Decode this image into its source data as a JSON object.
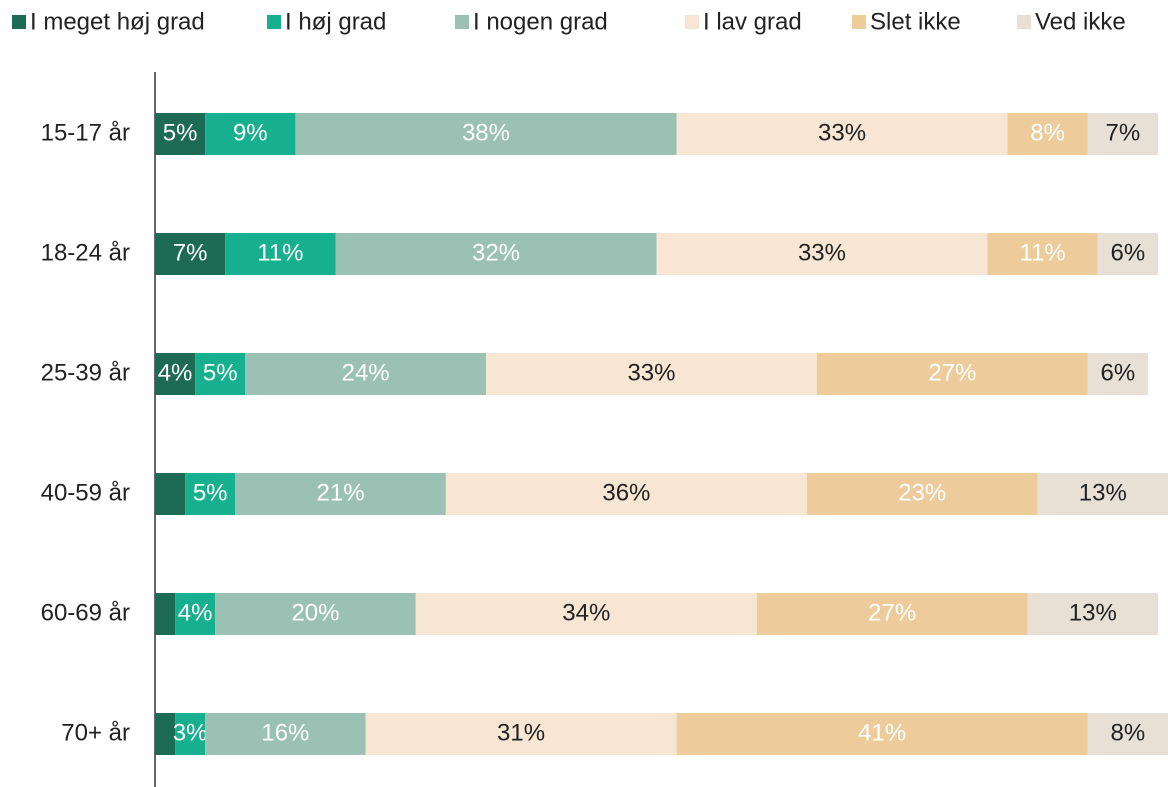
{
  "chart_data": {
    "type": "stacked-bar-horizontal",
    "categories": [
      "15-17 år",
      "18-24 år",
      "25-39 år",
      "40-59 år",
      "60-69 år",
      "70+ år"
    ],
    "series": [
      {
        "name": "I meget høj grad",
        "color": "#1d6b54",
        "label_color": "#ffffff",
        "values": [
          5,
          7,
          4,
          3,
          2,
          2
        ],
        "value_labels": [
          "5%",
          "7%",
          "4%",
          null,
          null,
          null
        ]
      },
      {
        "name": "I høj grad",
        "color": "#17b08f",
        "label_color": "#ffffff",
        "values": [
          9,
          11,
          5,
          5,
          4,
          3
        ],
        "value_labels": [
          "9%",
          "11%",
          "5%",
          "5%",
          "4%",
          "3%"
        ]
      },
      {
        "name": "I nogen grad",
        "color": "#9bc1b5",
        "label_color": "#ffffff",
        "values": [
          38,
          32,
          24,
          21,
          20,
          16
        ],
        "value_labels": [
          "38%",
          "32%",
          "24%",
          "21%",
          "20%",
          "16%"
        ]
      },
      {
        "name": "I lav grad",
        "color": "#f6e6d3",
        "label_color": "#222222",
        "values": [
          33,
          33,
          33,
          36,
          34,
          31
        ],
        "value_labels": [
          "33%",
          "33%",
          "33%",
          "36%",
          "34%",
          "31%"
        ]
      },
      {
        "name": "Slet ikke",
        "color": "#edcb9b",
        "label_color": "#ffffff",
        "values": [
          8,
          11,
          27,
          23,
          27,
          41
        ],
        "value_labels": [
          "8%",
          "11%",
          "27%",
          "23%",
          "27%",
          "41%"
        ]
      },
      {
        "name": "Ved ikke",
        "color": "#e8e0d5",
        "label_color": "#222222",
        "values": [
          7,
          6,
          6,
          13,
          13,
          8
        ],
        "value_labels": [
          "7%",
          "6%",
          "6%",
          "13%",
          "13%",
          "8%"
        ]
      }
    ],
    "legend": "top"
  }
}
